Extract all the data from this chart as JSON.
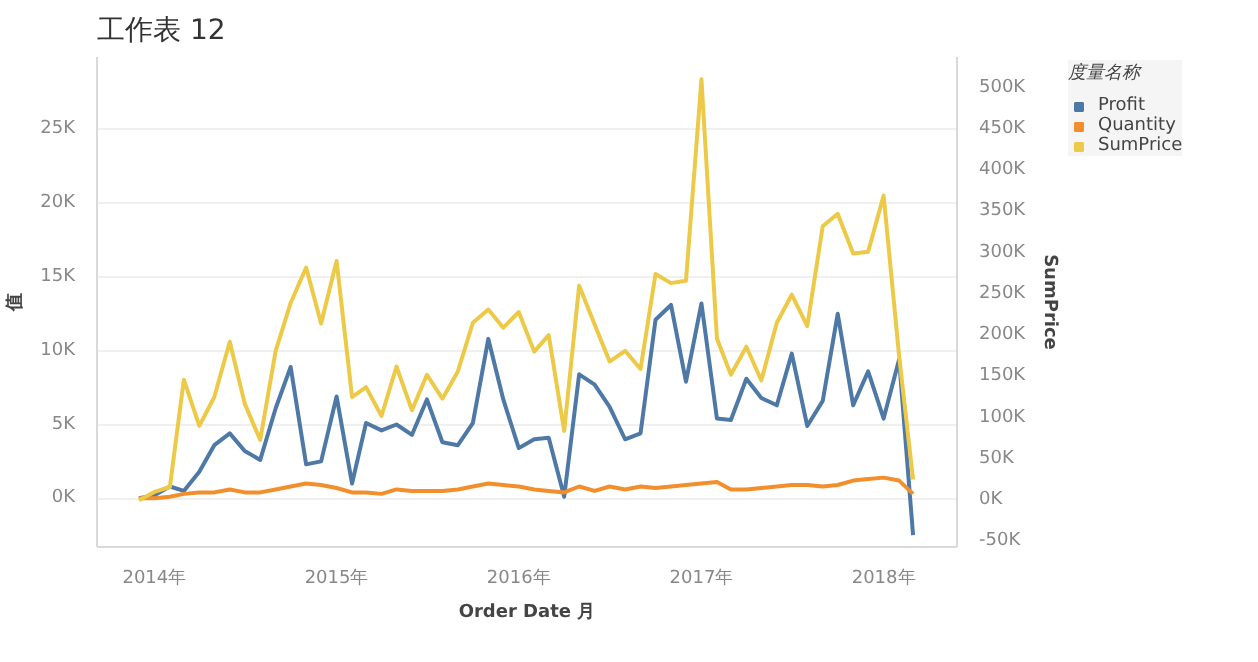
{
  "chart_data": {
    "type": "line",
    "title": "工作表 12",
    "xlabel": "Order Date 月",
    "ylabel": "值",
    "y2label": "SumPrice",
    "legend_title": "度量名称",
    "legend": "right",
    "grid": "y",
    "line_style": "solid",
    "marker": "none",
    "x": [
      "2013-12",
      "2014-01",
      "2014-02",
      "2014-03",
      "2014-04",
      "2014-05",
      "2014-06",
      "2014-07",
      "2014-08",
      "2014-09",
      "2014-10",
      "2014-11",
      "2014-12",
      "2015-01",
      "2015-02",
      "2015-03",
      "2015-04",
      "2015-05",
      "2015-06",
      "2015-07",
      "2015-08",
      "2015-09",
      "2015-10",
      "2015-11",
      "2015-12",
      "2016-01",
      "2016-02",
      "2016-03",
      "2016-04",
      "2016-05",
      "2016-06",
      "2016-07",
      "2016-08",
      "2016-09",
      "2016-10",
      "2016-11",
      "2016-12",
      "2017-01",
      "2017-02",
      "2017-03",
      "2017-04",
      "2017-05",
      "2017-06",
      "2017-07",
      "2017-08",
      "2017-09",
      "2017-10",
      "2017-11",
      "2017-12",
      "2018-01",
      "2018-02",
      "2018-03"
    ],
    "xlim": [
      "2013-09-08",
      "2018-05-28"
    ],
    "xticks": [
      {
        "value": "2014-01-01",
        "label": "2014年"
      },
      {
        "value": "2015-01-01",
        "label": "2015年"
      },
      {
        "value": "2016-01-01",
        "label": "2016年"
      },
      {
        "value": "2017-01-01",
        "label": "2017年"
      },
      {
        "value": "2018-01-01",
        "label": "2018年"
      }
    ],
    "ylim": [
      -3300,
      29900
    ],
    "yticks": [
      {
        "value": 0,
        "label": "0K"
      },
      {
        "value": 5000,
        "label": "5K"
      },
      {
        "value": 10000,
        "label": "10K"
      },
      {
        "value": 15000,
        "label": "15K"
      },
      {
        "value": 20000,
        "label": "20K"
      },
      {
        "value": 25000,
        "label": "25K"
      }
    ],
    "y2lim": [
      -56700,
      537000
    ],
    "y2ticks": [
      {
        "value": -50000,
        "label": "-50K"
      },
      {
        "value": 0,
        "label": "0K"
      },
      {
        "value": 50000,
        "label": "50K"
      },
      {
        "value": 100000,
        "label": "100K"
      },
      {
        "value": 150000,
        "label": "150K"
      },
      {
        "value": 200000,
        "label": "200K"
      },
      {
        "value": 250000,
        "label": "250K"
      },
      {
        "value": 300000,
        "label": "300K"
      },
      {
        "value": 350000,
        "label": "350K"
      },
      {
        "value": 400000,
        "label": "400K"
      },
      {
        "value": 450000,
        "label": "450K"
      },
      {
        "value": 500000,
        "label": "500K"
      }
    ],
    "series": [
      {
        "name": "Profit",
        "color": "#4e79a7",
        "values": [
          0,
          200,
          800,
          500,
          1800,
          3600,
          4400,
          3200,
          2600,
          6100,
          8900,
          2300,
          2500,
          6900,
          1000,
          5100,
          4600,
          5000,
          4300,
          6700,
          3800,
          3600,
          5100,
          10800,
          6700,
          3400,
          4000,
          4100,
          100,
          8400,
          7700,
          6200,
          4000,
          4400,
          12100,
          13100,
          7900,
          13200,
          5400,
          5300,
          8100,
          6800,
          6300,
          9800,
          4900,
          6600,
          12500,
          6300,
          8600,
          5400,
          9400,
          -2500
        ]
      },
      {
        "name": "Quantity",
        "color": "#f28e2b",
        "values": [
          0,
          0,
          100,
          300,
          400,
          400,
          600,
          400,
          400,
          600,
          800,
          1000,
          900,
          700,
          400,
          400,
          300,
          600,
          500,
          500,
          500,
          600,
          800,
          1000,
          900,
          800,
          600,
          500,
          400,
          800,
          500,
          800,
          600,
          800,
          700,
          800,
          900,
          1000,
          1100,
          600,
          600,
          700,
          800,
          900,
          900,
          800,
          900,
          1200,
          1300,
          1400,
          1200,
          300
        ]
      },
      {
        "name": "SumPrice",
        "color": "#edc948",
        "axis": "y2",
        "values": [
          0,
          10000,
          16000,
          146000,
          90000,
          125000,
          192000,
          117000,
          73000,
          181000,
          239000,
          282000,
          214000,
          290000,
          125000,
          137000,
          102000,
          162000,
          109000,
          152000,
          123000,
          156000,
          215000,
          231000,
          209000,
          228000,
          180000,
          200000,
          84000,
          260000,
          213000,
          168000,
          181000,
          159000,
          274000,
          263000,
          266000,
          510000,
          196000,
          152000,
          186000,
          145000,
          215000,
          249000,
          211000,
          332000,
          347000,
          299000,
          301000,
          369000,
          175000,
          25000
        ]
      }
    ]
  }
}
